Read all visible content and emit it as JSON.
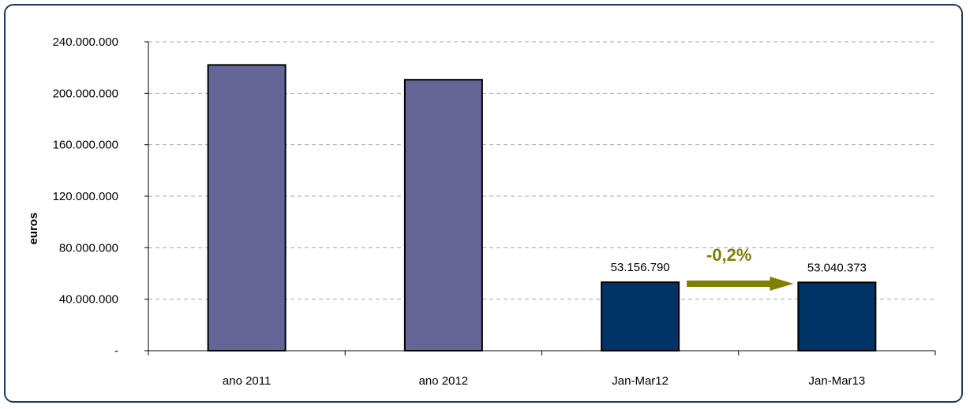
{
  "chart_data": {
    "type": "bar",
    "categories": [
      "ano 2011",
      "ano 2012",
      "Jan-Mar12",
      "Jan-Mar13"
    ],
    "values": [
      222000000,
      210500000,
      53156790,
      53040373
    ],
    "bar_colors": [
      "#656597",
      "#656597",
      "#003366",
      "#003366"
    ],
    "ylabel": "euros",
    "ylim": [
      0,
      240000000
    ],
    "yticks": [
      0,
      40000000,
      80000000,
      120000000,
      160000000,
      200000000,
      240000000
    ],
    "ytick_labels": [
      "-",
      "40.000.000",
      "80.000.000",
      "120.000.000",
      "160.000.000",
      "200.000.000",
      "240.000.000"
    ],
    "data_labels": [
      "",
      "",
      "53.156.790",
      "53.040.373"
    ],
    "grid": true,
    "annotation": {
      "text": "-0,2%",
      "color": "#808000",
      "from": "Jan-Mar12",
      "to": "Jan-Mar13"
    }
  }
}
